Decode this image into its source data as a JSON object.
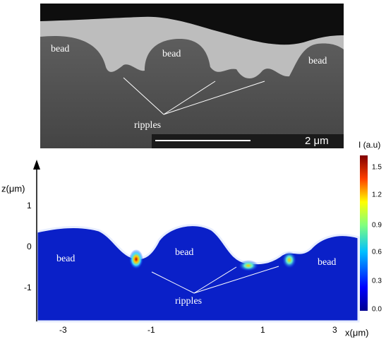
{
  "sem": {
    "labels": [
      "bead",
      "bead",
      "bead"
    ],
    "ripples": "ripples",
    "scale_bar": "2 μm"
  },
  "simulation": {
    "z_label": "z(μm)",
    "z_ticks": [
      "1",
      "0",
      "-1"
    ],
    "x_label": "x(μm)",
    "x_ticks": [
      "-3",
      "-1",
      "1",
      "3"
    ],
    "labels": [
      "bead",
      "bead",
      "bead"
    ],
    "ripples": "ripples",
    "colorbar_title": "I (a.u)",
    "colorbar_ticks": [
      "1.5",
      "1.2",
      "0.9",
      "0.6",
      "0.3",
      "0.0"
    ]
  }
}
